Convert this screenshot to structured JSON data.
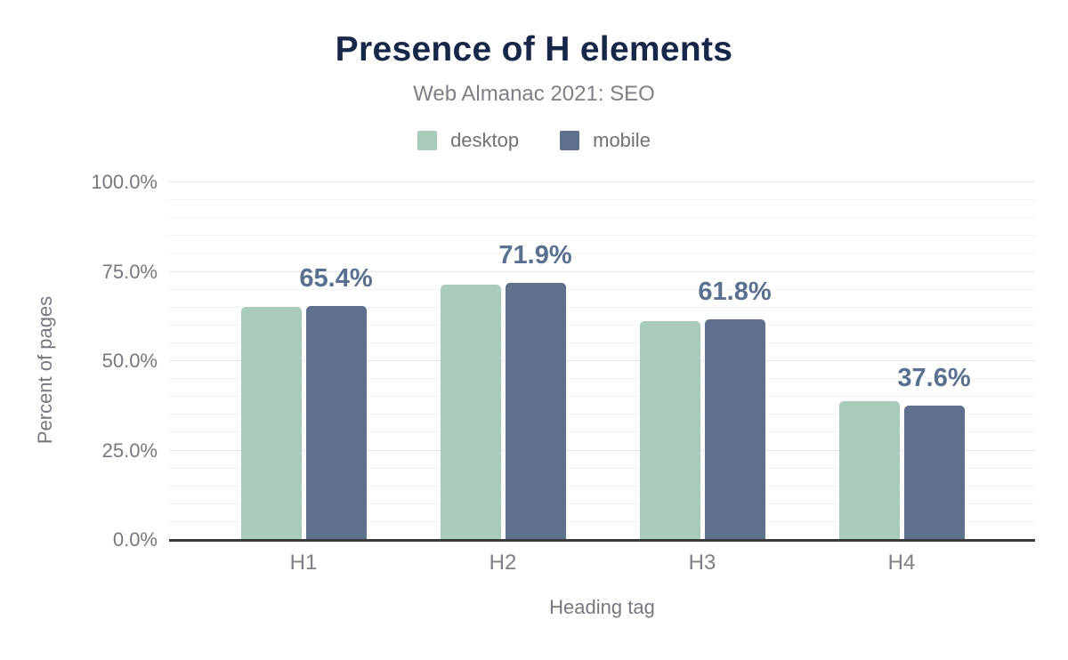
{
  "chart_data": {
    "type": "bar",
    "title": "Presence of H elements",
    "subtitle": "Web Almanac 2021: SEO",
    "xlabel": "Heading tag",
    "ylabel": "Percent of pages",
    "categories": [
      "H1",
      "H2",
      "H3",
      "H4"
    ],
    "series": [
      {
        "name": "desktop",
        "color": "#a8cbba",
        "values": [
          65.1,
          71.5,
          61.2,
          38.9
        ]
      },
      {
        "name": "mobile",
        "color": "#5f708c",
        "values": [
          65.4,
          71.9,
          61.8,
          37.6
        ]
      }
    ],
    "data_labels": {
      "series": "mobile",
      "texts": [
        "65.4%",
        "71.9%",
        "61.8%",
        "37.6%"
      ],
      "color": "#5a7090"
    },
    "ylim": [
      0,
      100
    ],
    "yticks": [
      {
        "value": 0,
        "label": "0.0%"
      },
      {
        "value": 25,
        "label": "25.0%"
      },
      {
        "value": 50,
        "label": "50.0%"
      },
      {
        "value": 75,
        "label": "75.0%"
      },
      {
        "value": 100,
        "label": "100.0%"
      }
    ],
    "minor_grid_step": 5,
    "major_grid_step": 25,
    "grid": true,
    "legend_position": "top"
  },
  "colors": {
    "title": "#17274a",
    "subtitle": "#7c8086",
    "axis_text": "#75797f",
    "category_text": "#7d8186",
    "legend_text": "#6e7277",
    "axis_line": "#3a3a3a",
    "grid_major": "#e4e6e8",
    "grid_minor": "#f3f3f3"
  }
}
